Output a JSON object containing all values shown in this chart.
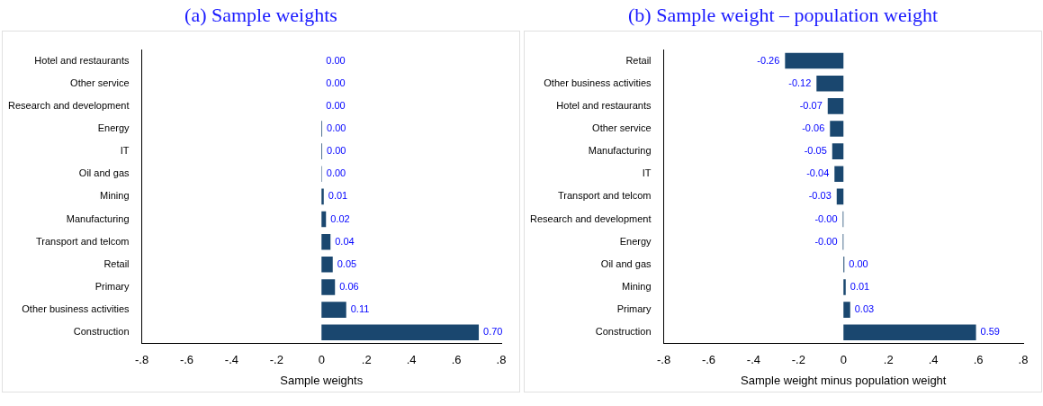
{
  "chart_data": [
    {
      "type": "bar",
      "orientation": "horizontal",
      "title": "(a) Sample weights",
      "xlabel": "Sample weights",
      "categories": [
        "Hotel and restaurants",
        "Other service",
        "Research and development",
        "Energy",
        "IT",
        "Oil and gas",
        "Mining",
        "Manufacturing",
        "Transport and telcom",
        "Retail",
        "Primary",
        "Other business activities",
        "Construction"
      ],
      "values": [
        0,
        0,
        0,
        0.003,
        0.003,
        0.002,
        0.01,
        0.02,
        0.04,
        0.05,
        0.06,
        0.11,
        0.7
      ],
      "value_labels": [
        "0.00",
        "0.00",
        "0.00",
        "0.00",
        "0.00",
        "0.00",
        "0.01",
        "0.02",
        "0.04",
        "0.05",
        "0.06",
        "0.11",
        "0.70"
      ],
      "color": "#1a476f",
      "xlim": [
        -0.8,
        0.8
      ],
      "xticks": [
        {
          "value": -0.8,
          "label": "-.8"
        },
        {
          "value": -0.6,
          "label": "-.6"
        },
        {
          "value": -0.4,
          "label": "-.4"
        },
        {
          "value": -0.2,
          "label": "-.2"
        },
        0,
        {
          "value": 0.2,
          "label": ".2"
        },
        {
          "value": 0.4,
          "label": ".4"
        },
        {
          "value": 0.6,
          "label": ".6"
        },
        {
          "value": 0.8,
          "label": ".8"
        }
      ],
      "grid": false,
      "legend": false
    },
    {
      "type": "bar",
      "orientation": "horizontal",
      "title": "(b) Sample weight – population weight",
      "xlabel": "Sample weight minus population weight",
      "categories": [
        "Retail",
        "Other business activities",
        "Hotel and restaurants",
        "Other service",
        "Manufacturing",
        "IT",
        "Transport and telcom",
        "Research and development",
        "Energy",
        "Oil and gas",
        "Mining",
        "Primary",
        "Construction"
      ],
      "values": [
        -0.26,
        -0.12,
        -0.07,
        -0.06,
        -0.05,
        -0.04,
        -0.03,
        -0.003,
        -0.003,
        0.004,
        0.01,
        0.03,
        0.59
      ],
      "value_labels": [
        "-0.26",
        "-0.12",
        "-0.07",
        "-0.06",
        "-0.05",
        "-0.04",
        "-0.03",
        "-0.00",
        "-0.00",
        "0.00",
        "0.01",
        "0.03",
        "0.59"
      ],
      "color": "#1a476f",
      "xlim": [
        -0.8,
        0.8
      ],
      "xticks": [
        {
          "value": -0.8,
          "label": "-.8"
        },
        {
          "value": -0.6,
          "label": "-.6"
        },
        {
          "value": -0.4,
          "label": "-.4"
        },
        {
          "value": -0.2,
          "label": "-.2"
        },
        0,
        {
          "value": 0.2,
          "label": ".2"
        },
        {
          "value": 0.4,
          "label": ".4"
        },
        {
          "value": 0.6,
          "label": ".6"
        },
        {
          "value": 0.8,
          "label": ".8"
        }
      ],
      "grid": false,
      "legend": false
    }
  ]
}
